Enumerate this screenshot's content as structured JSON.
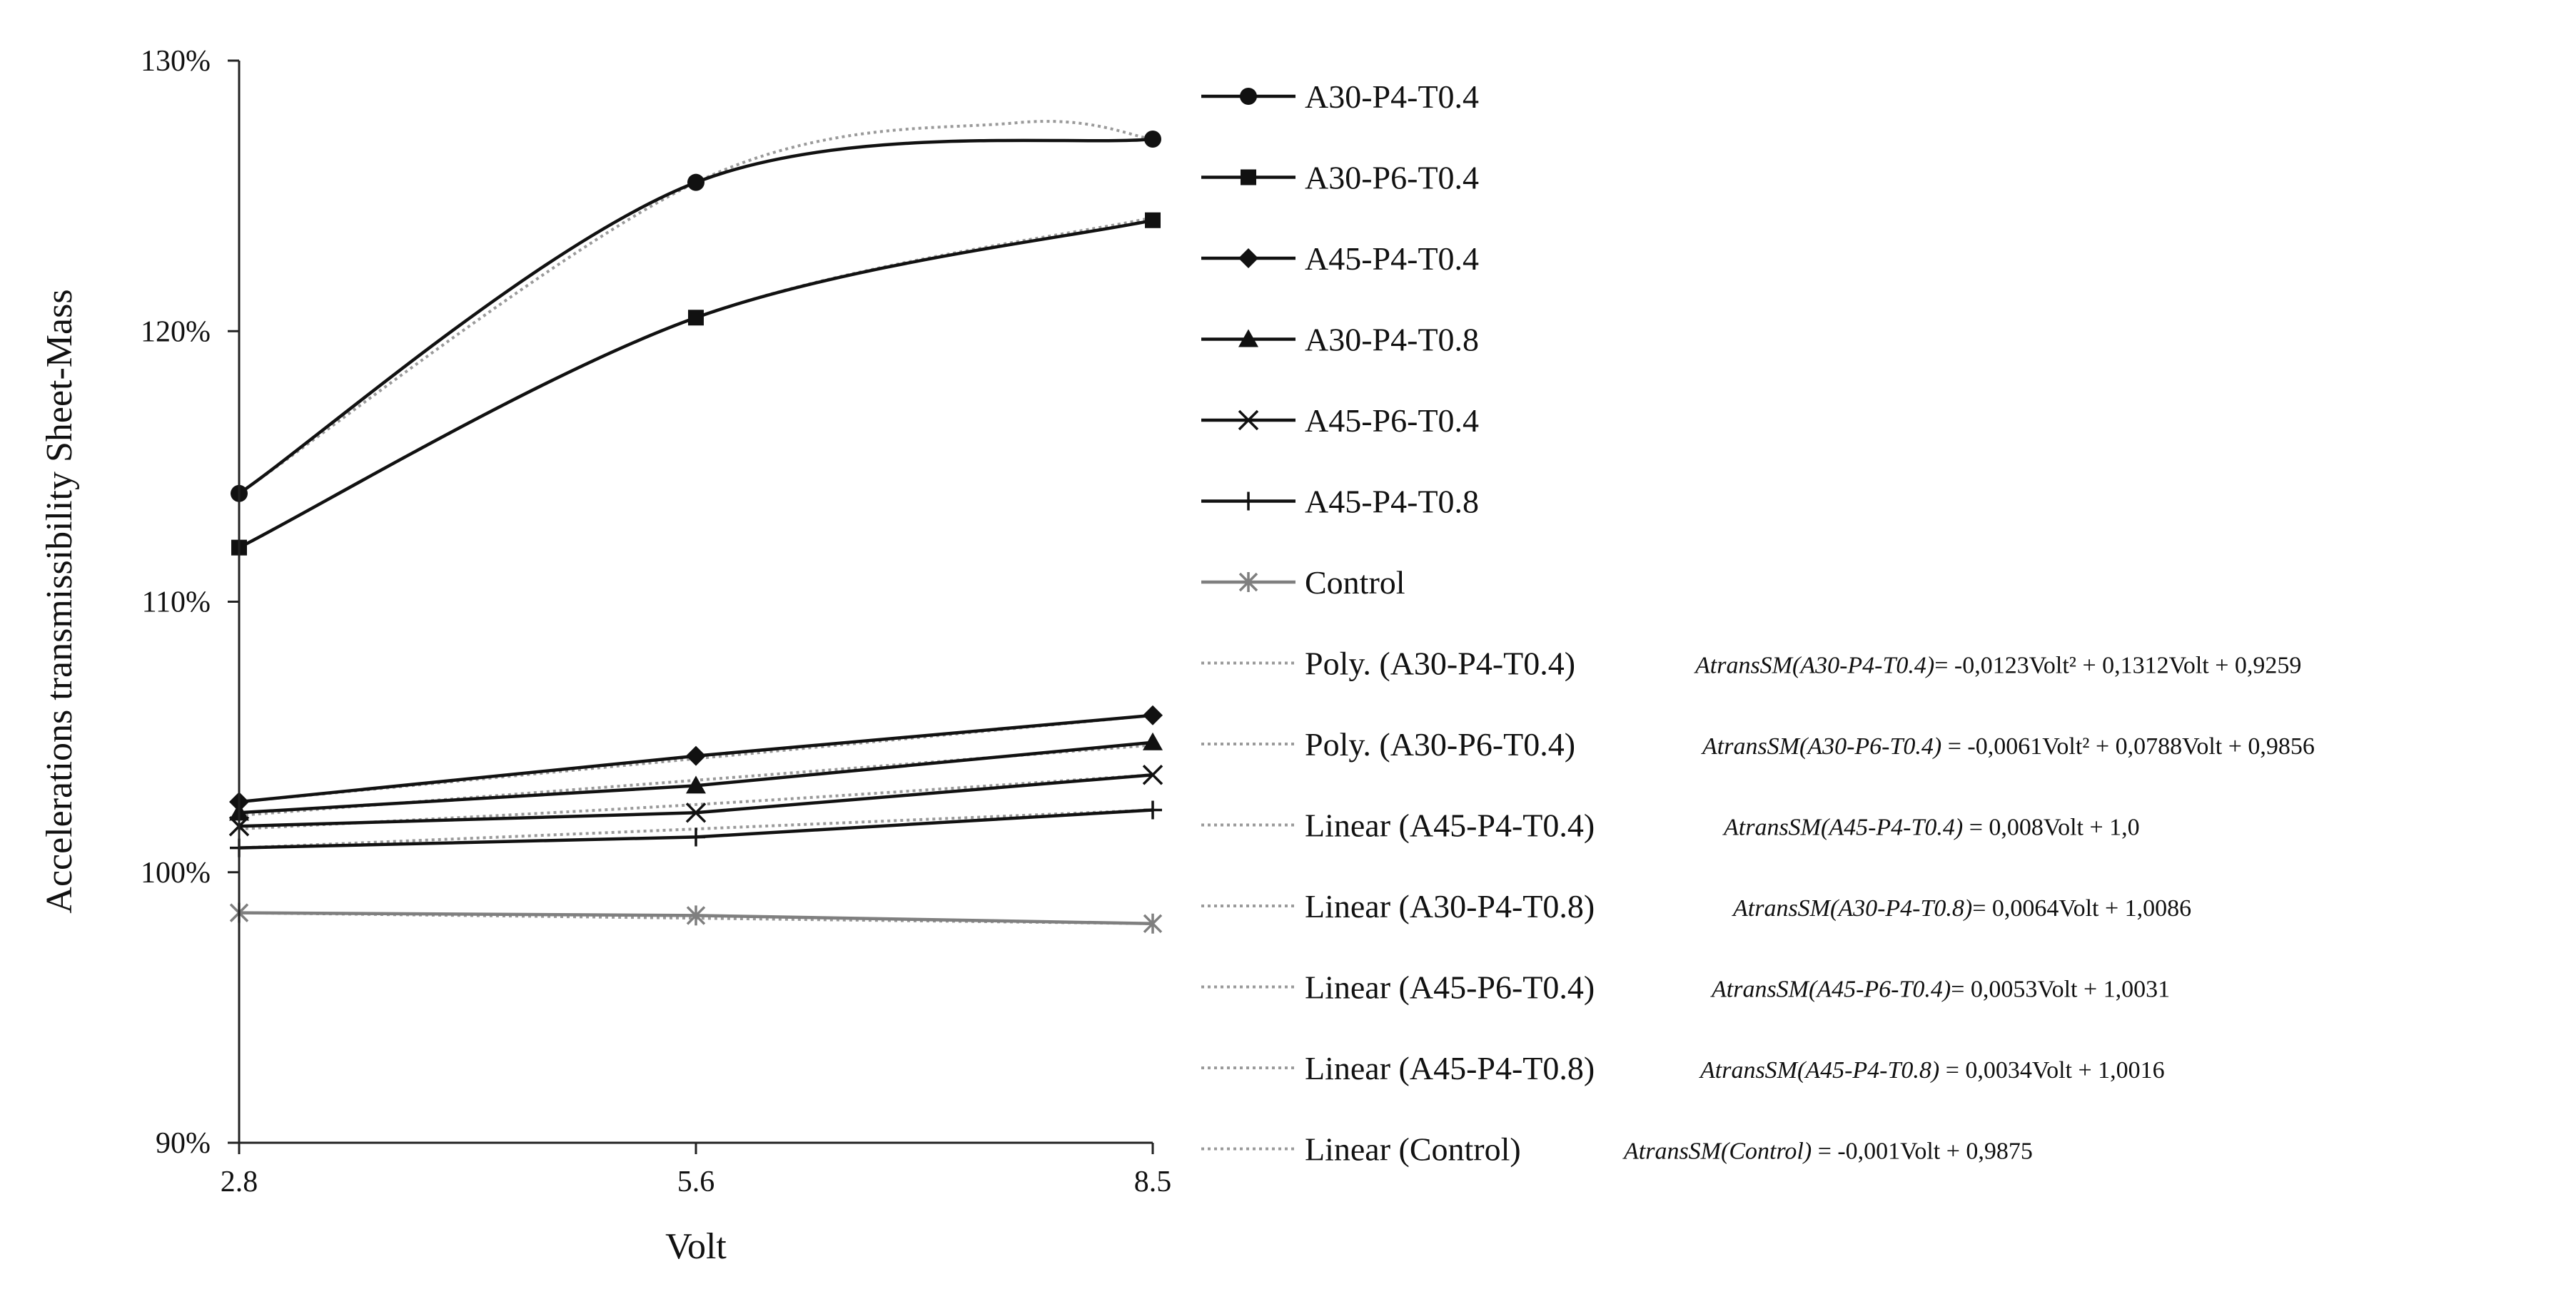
{
  "chart_data": {
    "type": "line",
    "xlabel": "Volt",
    "ylabel": "Accelerations transmissibility Sheet-Mass",
    "categories": [
      "2.8",
      "5.6",
      "8.5"
    ],
    "y_tick_labels": [
      "90%",
      "100%",
      "110%",
      "120%",
      "130%"
    ],
    "ylim": [
      0.9,
      1.3
    ],
    "y_ticks": [
      0.9,
      1.0,
      1.1,
      1.2,
      1.3
    ],
    "grid": false,
    "legend_position": "right",
    "series": [
      {
        "name": "A30-P4-T0.4",
        "marker": "circle",
        "color": "#111111",
        "smooth": true,
        "values": [
          1.14,
          1.255,
          1.271
        ]
      },
      {
        "name": "A30-P6-T0.4",
        "marker": "square",
        "color": "#111111",
        "smooth": true,
        "values": [
          1.12,
          1.205,
          1.241
        ]
      },
      {
        "name": "A45-P4-T0.4",
        "marker": "diamond",
        "color": "#111111",
        "smooth": false,
        "values": [
          1.026,
          1.043,
          1.058
        ]
      },
      {
        "name": "A30-P4-T0.8",
        "marker": "triangle",
        "color": "#111111",
        "smooth": false,
        "values": [
          1.022,
          1.032,
          1.048
        ]
      },
      {
        "name": "A45-P6-T0.4",
        "marker": "x",
        "color": "#111111",
        "smooth": false,
        "values": [
          1.017,
          1.022,
          1.036
        ]
      },
      {
        "name": "A45-P4-T0.8",
        "marker": "plus",
        "color": "#111111",
        "smooth": false,
        "values": [
          1.009,
          1.013,
          1.023
        ]
      },
      {
        "name": "Control",
        "marker": "star",
        "color": "#7f7f7f",
        "smooth": false,
        "values": [
          0.985,
          0.984,
          0.981
        ]
      }
    ],
    "trendlines": [
      {
        "name": "Poly. (A30-P4-T0.4)",
        "equation": {
          "prefix": "AtransSM(A30-P4-T0.4)",
          "text": "= -0,0123Volt² + 0,1312Volt + 0,9259"
        },
        "values": [
          1.14,
          1.255,
          1.277,
          1.271
        ],
        "x_index": [
          0,
          1,
          1.7,
          2
        ]
      },
      {
        "name": "Poly. (A30-P6-T0.4)",
        "equation": {
          "prefix": "AtransSM(A30-P6-T0.4)",
          "text": " = -0,0061Volt² + 0,0788Volt + 0,9856"
        },
        "values": [
          1.12,
          1.205,
          1.242
        ],
        "x_index": [
          0,
          1,
          2
        ]
      },
      {
        "name": "Linear (A45-P4-T0.4)",
        "equation": {
          "prefix": "AtransSM(A45-P4-T0.4)",
          "text": " = 0,008Volt + 1,0"
        },
        "values": [
          1.026,
          1.042,
          1.058
        ],
        "x_index": [
          0,
          1,
          2
        ]
      },
      {
        "name": "Linear (A30-P4-T0.8)",
        "equation": {
          "prefix": "AtransSM(A30-P4-T0.8)",
          "text": "= 0,0064Volt + 1,0086"
        },
        "values": [
          1.021,
          1.034,
          1.047
        ],
        "x_index": [
          0,
          1,
          2
        ]
      },
      {
        "name": "Linear (A45-P6-T0.4)",
        "equation": {
          "prefix": "AtransSM(A45-P6-T0.4)",
          "text": "= 0,0053Volt + 1,0031"
        },
        "values": [
          1.016,
          1.025,
          1.036
        ],
        "x_index": [
          0,
          1,
          2
        ]
      },
      {
        "name": "Linear (A45-P4-T0.8)",
        "equation": {
          "prefix": "AtransSM(A45-P4-T0.8)",
          "text": " = 0,0034Volt + 1,0016"
        },
        "values": [
          1.009,
          1.016,
          1.023
        ],
        "x_index": [
          0,
          1,
          2
        ]
      },
      {
        "name": "Linear (Control)",
        "equation": {
          "prefix": "AtransSM(Control)",
          "text": " = -0,001Volt + 0,9875"
        },
        "values": [
          0.985,
          0.983,
          0.981
        ],
        "x_index": [
          0,
          1,
          2
        ]
      }
    ]
  }
}
